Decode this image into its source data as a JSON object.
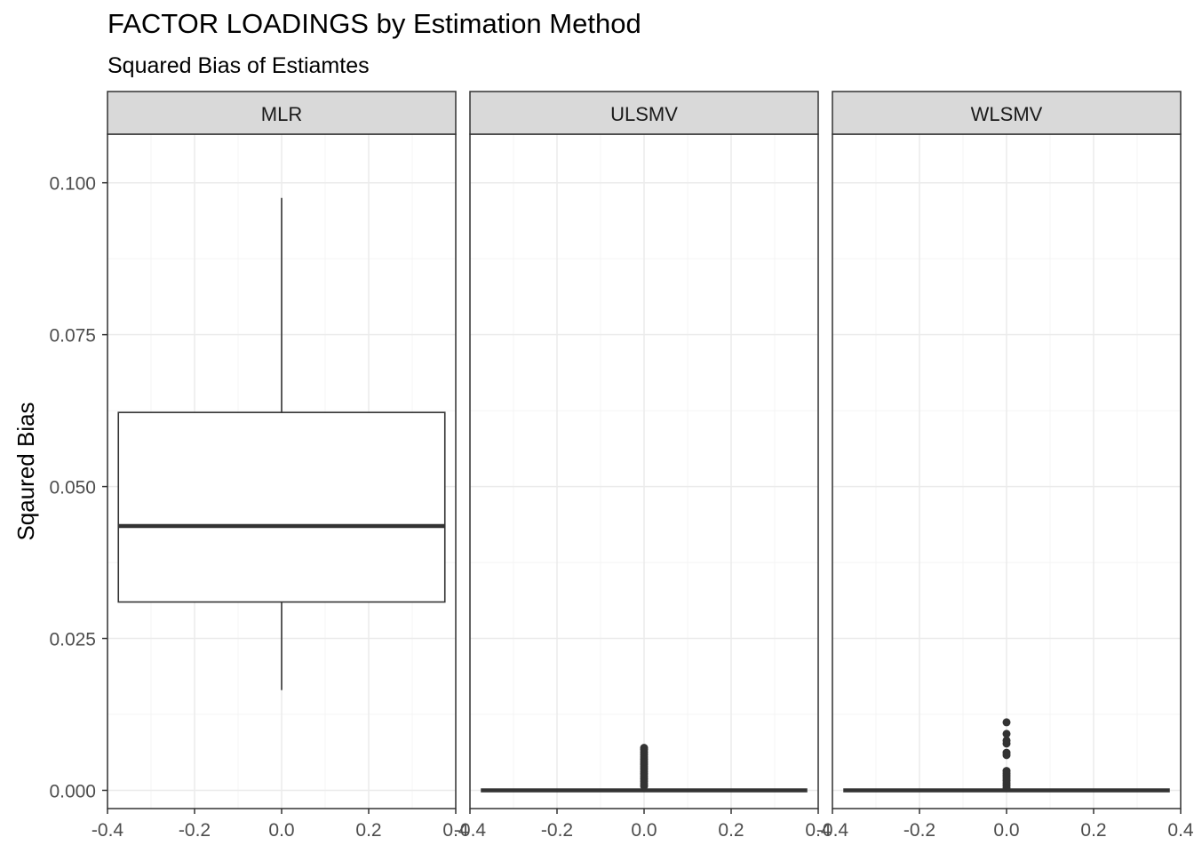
{
  "chart_data": {
    "type": "boxplot",
    "title": "FACTOR LOADINGS by Estimation Method",
    "subtitle": "Squared Bias of Estiamtes",
    "xlabel": "",
    "ylabel": "Sqaured Bias",
    "xlim": [
      -0.4,
      0.4
    ],
    "ylim": [
      -0.003,
      0.108
    ],
    "x_ticks": [
      "-0.4",
      "-0.2",
      "0.0",
      "0.2",
      "0.4"
    ],
    "y_ticks": [
      "0.000",
      "0.025",
      "0.050",
      "0.075",
      "0.100"
    ],
    "grid": true,
    "facets": [
      {
        "name": "MLR",
        "box": {
          "x_center": 0.0,
          "x_halfwidth": 0.375,
          "lower_whisker": 0.0165,
          "q1": 0.031,
          "median": 0.0435,
          "q3": 0.0622,
          "upper_whisker": 0.0975
        },
        "outliers": []
      },
      {
        "name": "ULSMV",
        "box": {
          "x_center": 0.0,
          "x_halfwidth": 0.375,
          "lower_whisker": 0.0,
          "q1": 0.0,
          "median": 0.0,
          "q3": 0.0,
          "upper_whisker": 0.0
        },
        "outliers": [
          0.0007,
          0.0011,
          0.0015,
          0.0019,
          0.0023,
          0.0027,
          0.0031,
          0.0035,
          0.0039,
          0.0043,
          0.0047,
          0.0051,
          0.0055,
          0.0059,
          0.0063,
          0.0067,
          0.007
        ]
      },
      {
        "name": "WLSMV",
        "box": {
          "x_center": 0.0,
          "x_halfwidth": 0.375,
          "lower_whisker": 0.0,
          "q1": 0.0,
          "median": 0.0,
          "q3": 0.0,
          "upper_whisker": 0.0
        },
        "outliers": [
          0.0004,
          0.0008,
          0.0012,
          0.0016,
          0.002,
          0.0024,
          0.0028,
          0.0032,
          0.0058,
          0.0062,
          0.0077,
          0.0082,
          0.0093,
          0.0112
        ]
      }
    ]
  },
  "colors": {
    "strip_fill": "#d9d9d9",
    "panel_border": "#333333",
    "grid_major": "#ebebeb",
    "grid_minor": "#f4f4f4",
    "box_line": "#333333",
    "tick_label": "#4d4d4d"
  }
}
